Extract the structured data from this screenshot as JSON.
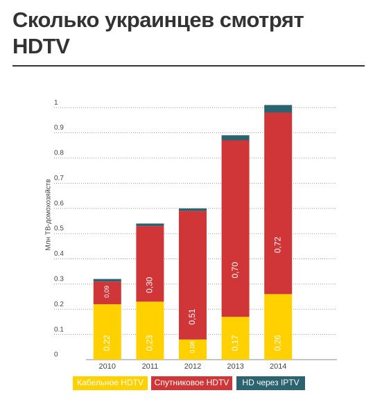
{
  "chart_data": {
    "type": "stacked_bar",
    "title": "Сколько украинцев смотрят HDTV",
    "y_label": "Млн ТВ-домохозяйств",
    "categories": [
      "2010",
      "2011",
      "2012",
      "2013",
      "2014"
    ],
    "series": [
      {
        "name": "Кабельное HDTV",
        "color": "#ffd100",
        "values": [
          0.22,
          0.23,
          0.08,
          0.17,
          0.26
        ],
        "value_labels": [
          "0,22",
          "0,23",
          "0,08",
          "0,17",
          "0,26"
        ]
      },
      {
        "name": "Спутниковое HDTV",
        "color": "#d03537",
        "values": [
          0.09,
          0.3,
          0.51,
          0.7,
          0.72
        ],
        "value_labels": [
          "0,09",
          "0,30",
          "0,51",
          "0,70",
          "0,72"
        ]
      },
      {
        "name": "HD через IPTV",
        "color": "#2b6470",
        "values": [
          0.01,
          0.01,
          0.01,
          0.02,
          0.03
        ]
      }
    ],
    "ylim": [
      0,
      1.05
    ],
    "yticks": [
      0,
      0.1,
      0.2,
      0.3,
      0.4,
      0.5,
      0.6,
      0.7,
      0.8,
      0.9,
      1
    ],
    "grid": true
  }
}
